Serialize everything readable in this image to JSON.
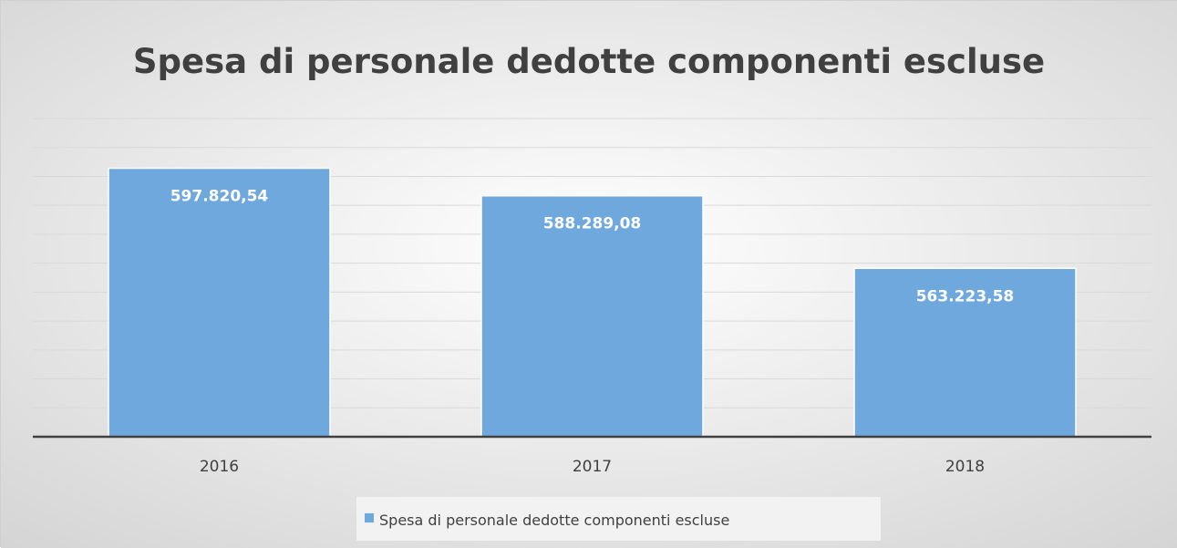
{
  "chart_data": {
    "type": "bar",
    "title": "Spesa di personale dedotte componenti escluse",
    "categories": [
      "2016",
      "2017",
      "2018"
    ],
    "series": [
      {
        "name": "Spesa di personale dedotte componenti escluse",
        "values": [
          597820.54,
          588289.08,
          563223.58
        ],
        "labels": [
          "597.820,54",
          "588.289,08",
          "563.223,58"
        ],
        "color": "#6fa8dc"
      }
    ],
    "ylim": [
      505000,
      615000
    ],
    "ygrid_step": 10000,
    "grid": true,
    "legend": "bottom",
    "xlabel": "",
    "ylabel": ""
  },
  "colors": {
    "background_center": "#ffffff",
    "background_edge": "#d4d4d4",
    "gridline": "#d9d9d9",
    "axis": "#404040",
    "bar_stroke": "#ffffff",
    "legend_box": "#f2f2f2"
  }
}
